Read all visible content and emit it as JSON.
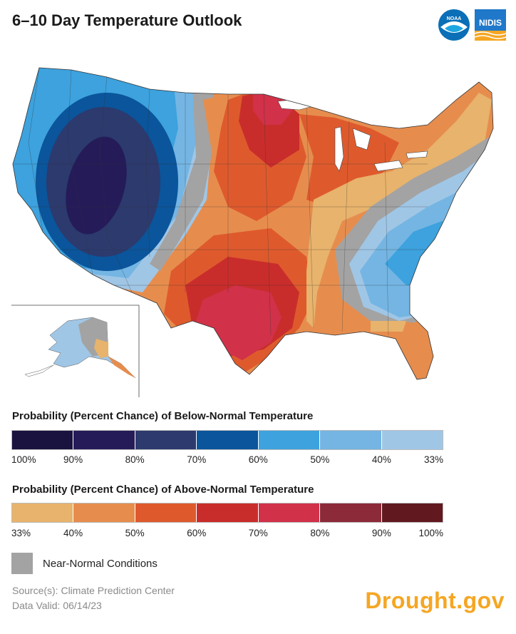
{
  "header": {
    "title": "6–10 Day Temperature Outlook",
    "logos": [
      {
        "icon": "noaa-logo-icon",
        "text": "NOAA"
      },
      {
        "icon": "nidis-logo-icon",
        "text": "NIDIS"
      }
    ]
  },
  "map": {
    "region": "Contiguous United States and Alaska",
    "colors": {
      "below_100": "#1a1340",
      "below_90": "#251b59",
      "below_80": "#2c3a6e",
      "below_70": "#0a559b",
      "below_60": "#3da2de",
      "below_50": "#74b5e3",
      "below_40": "#a0c6e6",
      "near_normal": "#a3a3a3",
      "above_33": "#e8b36c",
      "above_40": "#e68d4e",
      "above_50": "#de5a2d",
      "above_60": "#c92d2b",
      "above_70": "#d13149",
      "above_80": "#8c2a3a",
      "above_90": "#61191f"
    }
  },
  "legend": {
    "below": {
      "title": "Probability (Percent Chance) of Below-Normal Temperature",
      "colors": [
        "#1a1340",
        "#251b59",
        "#2c3a6e",
        "#0a559b",
        "#3da2de",
        "#74b5e3",
        "#a0c6e6"
      ],
      "ticks": [
        "100%",
        "90%",
        "80%",
        "70%",
        "60%",
        "50%",
        "40%",
        "33%"
      ]
    },
    "above": {
      "title": "Probability (Percent Chance) of Above-Normal Temperature",
      "colors": [
        "#e8b36c",
        "#e68d4e",
        "#de5a2d",
        "#c92d2b",
        "#d13149",
        "#8c2a3a",
        "#61191f"
      ],
      "ticks": [
        "33%",
        "40%",
        "50%",
        "60%",
        "70%",
        "80%",
        "90%",
        "100%"
      ]
    },
    "near_normal": {
      "label": "Near-Normal Conditions",
      "color": "#a3a3a3"
    }
  },
  "footer": {
    "source": "Source(s): Climate Prediction Center",
    "valid": "Data Valid: 06/14/23",
    "brand": "Drought.gov"
  }
}
